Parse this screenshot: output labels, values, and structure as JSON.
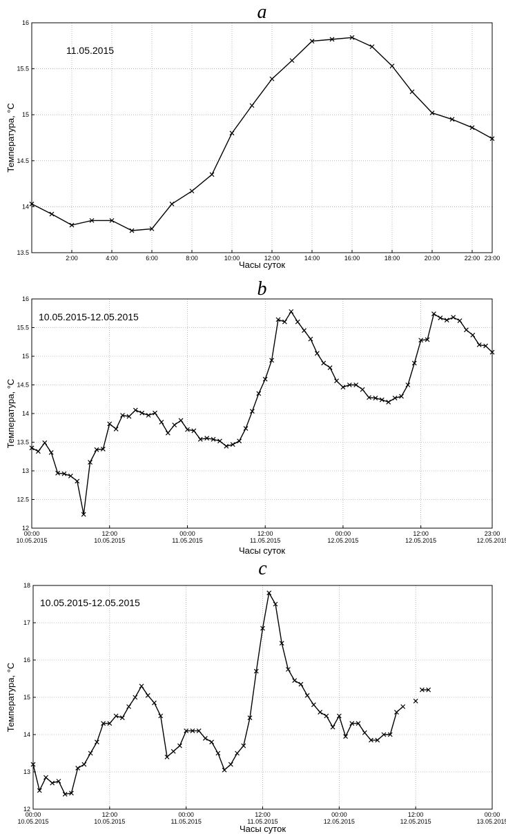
{
  "chart_data": [
    {
      "type": "line",
      "panel": "a",
      "annotation": "11.05.2015",
      "xlabel": "Часы суток",
      "ylabel": "Температура, °C",
      "xlim": [
        0,
        23
      ],
      "ylim": [
        13.5,
        16
      ],
      "x_ticks": [
        2,
        4,
        6,
        8,
        10,
        12,
        14,
        16,
        18,
        20,
        22,
        23
      ],
      "x_tick_labels": [
        "2:00",
        "4:00",
        "6:00",
        "8:00",
        "10:00",
        "12:00",
        "14:00",
        "16:00",
        "18:00",
        "20:00",
        "22:00",
        "23:00"
      ],
      "y_ticks": [
        13.5,
        14,
        14.5,
        15,
        15.5,
        16
      ],
      "y_tick_labels": [
        "13.5",
        "14",
        "14.5",
        "15",
        "15.5",
        "16"
      ],
      "grid": true,
      "series": [
        {
          "x": [
            0,
            1,
            2,
            3,
            4,
            5,
            6,
            7,
            8,
            9,
            10,
            11,
            12,
            13,
            14,
            15,
            16,
            17,
            18,
            19,
            20,
            21,
            22,
            23
          ],
          "y": [
            14.03,
            13.92,
            13.8,
            13.85,
            13.85,
            13.74,
            13.76,
            14.03,
            14.17,
            14.35,
            14.8,
            15.1,
            15.39,
            15.59,
            15.8,
            15.82,
            15.84,
            15.74,
            15.53,
            15.25,
            15.02,
            14.95,
            14.86,
            14.74
          ]
        }
      ]
    },
    {
      "type": "line",
      "panel": "b",
      "annotation": "10.05.2015-12.05.2015",
      "xlabel": "Часы суток",
      "ylabel": "Температура, °C",
      "xlim": [
        0,
        71
      ],
      "ylim": [
        12,
        16
      ],
      "x_ticks": [
        0,
        12,
        24,
        36,
        48,
        60,
        71
      ],
      "x_tick_labels": [
        [
          "00:00",
          "10.05.2015"
        ],
        [
          "12:00",
          "10.05.2015"
        ],
        [
          "00:00",
          "11.05.2015"
        ],
        [
          "12:00",
          "11.05.2015"
        ],
        [
          "00:00",
          "12.05.2015"
        ],
        [
          "12:00",
          "12.05.2015"
        ],
        [
          "23:00",
          "12.05.2015"
        ]
      ],
      "y_ticks": [
        12,
        12.5,
        13,
        13.5,
        14,
        14.5,
        15,
        15.5,
        16
      ],
      "y_tick_labels": [
        "12",
        "12.5",
        "13",
        "13.5",
        "14",
        "14.5",
        "15",
        "15.5",
        "16"
      ],
      "grid": true,
      "series": [
        {
          "x": [
            0,
            1,
            2,
            3,
            4,
            5,
            6,
            7,
            8,
            9,
            10,
            11,
            12,
            13,
            14,
            15,
            16,
            17,
            18,
            19,
            20,
            21,
            22,
            23,
            24,
            25,
            26,
            27,
            28,
            29,
            30,
            31,
            32,
            33,
            34,
            35,
            36,
            37,
            38,
            39,
            40,
            41,
            42,
            43,
            44,
            45,
            46,
            47,
            48,
            49,
            50,
            51,
            52,
            53,
            54,
            55,
            56,
            57,
            58,
            59,
            60,
            61,
            62,
            63,
            64,
            65,
            66,
            67,
            68,
            69,
            70,
            71
          ],
          "y": [
            13.4,
            13.34,
            13.49,
            13.32,
            12.96,
            12.95,
            12.91,
            12.82,
            12.24,
            13.15,
            13.37,
            13.38,
            13.82,
            13.73,
            13.97,
            13.95,
            14.06,
            14.01,
            13.97,
            14.01,
            13.85,
            13.66,
            13.8,
            13.88,
            13.72,
            13.7,
            13.55,
            13.57,
            13.55,
            13.52,
            13.43,
            13.46,
            13.52,
            13.74,
            14.04,
            14.35,
            14.6,
            14.93,
            15.64,
            15.6,
            15.78,
            15.6,
            15.45,
            15.3,
            15.05,
            14.88,
            14.8,
            14.57,
            14.46,
            14.5,
            14.5,
            14.42,
            14.28,
            14.27,
            14.24,
            14.2,
            14.27,
            14.3,
            14.5,
            14.88,
            15.28,
            15.29,
            15.74,
            15.67,
            15.63,
            15.68,
            15.62,
            15.46,
            15.37,
            15.2,
            15.18,
            15.07
          ]
        }
      ]
    },
    {
      "type": "line",
      "panel": "c",
      "annotation": "10.05.2015-12.05.2015",
      "xlabel": "Часы суток",
      "ylabel": "Температура, °C",
      "xlim": [
        0,
        72
      ],
      "ylim": [
        12,
        18
      ],
      "x_ticks": [
        0,
        12,
        24,
        36,
        48,
        60,
        72
      ],
      "x_tick_labels": [
        [
          "00:00",
          "10.05.2015"
        ],
        [
          "12:00",
          "10.05.2015"
        ],
        [
          "00:00",
          "11.05.2015"
        ],
        [
          "12:00",
          "11.05.2015"
        ],
        [
          "00:00",
          "12.05.2015"
        ],
        [
          "12:00",
          "12.05.2015"
        ],
        [
          "00:00",
          "13.05.2015"
        ]
      ],
      "y_ticks": [
        12,
        13,
        14,
        15,
        16,
        17,
        18
      ],
      "y_tick_labels": [
        "12",
        "13",
        "14",
        "15",
        "16",
        "17",
        "18"
      ],
      "grid": true,
      "series": [
        {
          "segments": [
            {
              "x": [
                0,
                1,
                2,
                3,
                4,
                5,
                6,
                7,
                8,
                9,
                10,
                11,
                12,
                13,
                14,
                15,
                16,
                17,
                18,
                19,
                20,
                21,
                22,
                23,
                24,
                25,
                26,
                27,
                28,
                29,
                30,
                31,
                32,
                33,
                34,
                35,
                36,
                37,
                38,
                39,
                40,
                41,
                42,
                43,
                44,
                45,
                46,
                47,
                48,
                49,
                50,
                51,
                52,
                53,
                54,
                55,
                56,
                57,
                58,
                59,
                60
              ],
              "y": [
                13.2,
                12.5,
                12.85,
                12.7,
                12.75,
                12.4,
                12.43,
                13.1,
                13.2,
                13.5,
                13.8,
                14.3,
                14.3,
                14.5,
                14.45,
                14.75,
                15.0,
                15.3,
                15.05,
                14.85,
                14.5,
                13.4,
                13.55,
                13.7,
                14.1,
                14.1,
                14.1,
                13.9,
                13.8,
                13.5,
                13.05,
                13.2,
                13.5,
                13.7,
                14.45,
                15.7,
                16.85,
                17.8,
                17.5,
                16.45,
                15.75,
                15.45,
                15.35,
                15.05,
                14.8,
                14.6,
                14.5,
                14.2,
                14.5,
                13.95,
                14.3,
                14.3,
                14.05,
                13.85,
                13.85,
                14.0,
                14.0,
                14.6,
                14.75,
                null,
                14.9
              ]
            },
            {
              "x": [
                61,
                62
              ],
              "y": [
                15.2,
                15.2
              ]
            }
          ]
        }
      ]
    }
  ],
  "panels": [
    {
      "letter": "a"
    },
    {
      "letter": "b"
    },
    {
      "letter": "c"
    }
  ]
}
